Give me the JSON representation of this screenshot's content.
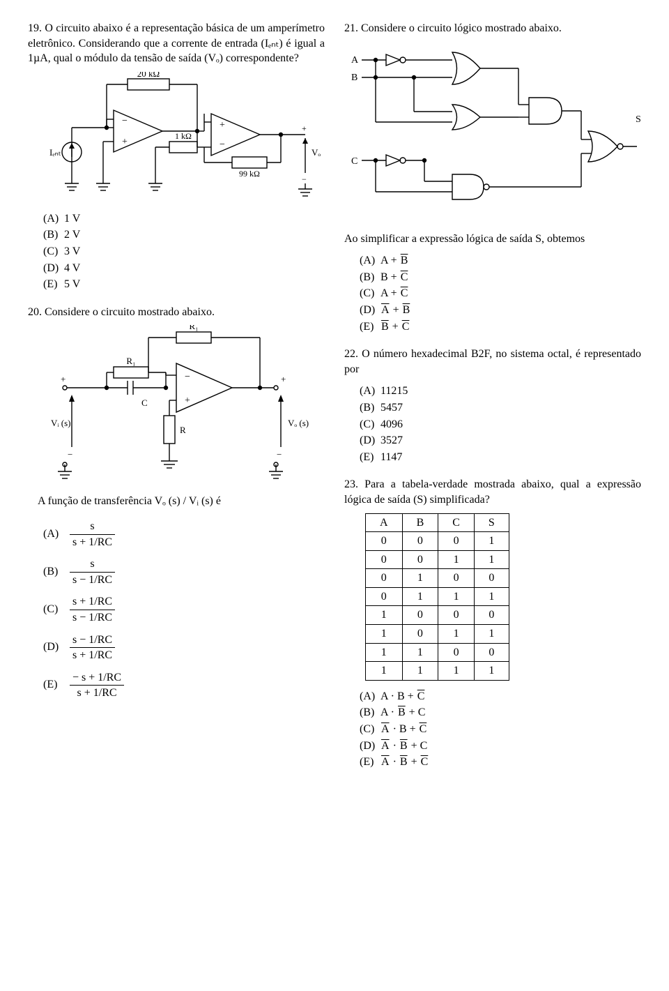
{
  "q19": {
    "number": "19.",
    "text": "O circuito abaixo é a representação básica de um amperímetro eletrônico. Considerando que a corrente de entrada (Iₑₙₜ) é igual a 1µA, qual o módulo da tensão de saída (Vₒ) correspondente?",
    "circuit": {
      "r1_label": "20 kΩ",
      "r2_label": "1 kΩ",
      "r3_label": "99 kΩ",
      "iin_label": "Iₑₙₜ",
      "vout_label": "Vₒ"
    },
    "options": [
      {
        "letter": "(A)",
        "val": "1 V"
      },
      {
        "letter": "(B)",
        "val": "2 V"
      },
      {
        "letter": "(C)",
        "val": "3 V"
      },
      {
        "letter": "(D)",
        "val": "4 V"
      },
      {
        "letter": "(E)",
        "val": "5 V"
      }
    ]
  },
  "q20": {
    "number": "20.",
    "text": "Considere o circuito mostrado abaixo.",
    "circuit": {
      "r1_label_top": "R₁",
      "r1_label_left": "R₁",
      "c_label": "C",
      "r_label": "R",
      "vi_label": "Vᵢ (s)",
      "vo_label": "Vₒ (s)"
    },
    "sub_text": "A função de transferência Vₒ (s) / Vᵢ (s) é",
    "options": [
      {
        "letter": "(A)",
        "num": "s",
        "den": "s + 1/RC",
        "neg": ""
      },
      {
        "letter": "(B)",
        "num": "s",
        "den": "s − 1/RC",
        "neg": ""
      },
      {
        "letter": "(C)",
        "num": "s + 1/RC",
        "den": "s − 1/RC",
        "neg": ""
      },
      {
        "letter": "(D)",
        "num": "s − 1/RC",
        "den": "s + 1/RC",
        "neg": ""
      },
      {
        "letter": "(E)",
        "num": "− s + 1/RC",
        "den": "s + 1/RC",
        "neg": ""
      }
    ]
  },
  "q21": {
    "number": "21.",
    "text": "Considere o circuito lógico mostrado abaixo.",
    "labels": {
      "A": "A",
      "B": "B",
      "C": "C",
      "S": "S"
    },
    "sub_text": "Ao simplificar a expressão lógica de saída S, obtemos",
    "options": [
      {
        "letter": "(A)",
        "pre": "A + ",
        "bar": "B",
        "post": ""
      },
      {
        "letter": "(B)",
        "pre": "B + ",
        "bar": "C",
        "post": ""
      },
      {
        "letter": "(C)",
        "pre": "A + ",
        "bar": "C",
        "post": ""
      },
      {
        "letter": "(D)",
        "pre": "",
        "bar": "A",
        "mid": " + ",
        "bar2": "B",
        "post": ""
      },
      {
        "letter": "(E)",
        "pre": "",
        "bar": "B",
        "mid": " + ",
        "bar2": "C",
        "post": ""
      }
    ]
  },
  "q22": {
    "number": "22.",
    "text": "O número hexadecimal B2F, no sistema octal, é representado por",
    "options": [
      {
        "letter": "(A)",
        "val": "11215"
      },
      {
        "letter": "(B)",
        "val": "5457"
      },
      {
        "letter": "(C)",
        "val": "4096"
      },
      {
        "letter": "(D)",
        "val": "3527"
      },
      {
        "letter": "(E)",
        "val": "1147"
      }
    ]
  },
  "q23": {
    "number": "23.",
    "text": "Para a tabela-verdade mostrada abaixo, qual a expressão lógica de saída (S) simplificada?",
    "table": {
      "headers": [
        "A",
        "B",
        "C",
        "S"
      ],
      "rows": [
        [
          "0",
          "0",
          "0",
          "1"
        ],
        [
          "0",
          "0",
          "1",
          "1"
        ],
        [
          "0",
          "1",
          "0",
          "0"
        ],
        [
          "0",
          "1",
          "1",
          "1"
        ],
        [
          "1",
          "0",
          "0",
          "0"
        ],
        [
          "1",
          "0",
          "1",
          "1"
        ],
        [
          "1",
          "1",
          "0",
          "0"
        ],
        [
          "1",
          "1",
          "1",
          "1"
        ]
      ]
    },
    "options": [
      {
        "letter": "(A)",
        "terms": [
          {
            "t": "A"
          },
          {
            "t": "·"
          },
          {
            "t": "B"
          },
          {
            "t": " + "
          },
          {
            "t": "C",
            "bar": true
          }
        ]
      },
      {
        "letter": "(B)",
        "terms": [
          {
            "t": "A"
          },
          {
            "t": "·"
          },
          {
            "t": "B",
            "bar": true
          },
          {
            "t": " + "
          },
          {
            "t": "C"
          }
        ]
      },
      {
        "letter": "(C)",
        "terms": [
          {
            "t": "A",
            "bar": true
          },
          {
            "t": "·"
          },
          {
            "t": "B"
          },
          {
            "t": " + "
          },
          {
            "t": "C",
            "bar": true
          }
        ]
      },
      {
        "letter": "(D)",
        "terms": [
          {
            "t": "A",
            "bar": true
          },
          {
            "t": "·"
          },
          {
            "t": "B",
            "bar": true
          },
          {
            "t": " + "
          },
          {
            "t": "C"
          }
        ]
      },
      {
        "letter": "(E)",
        "terms": [
          {
            "t": "A",
            "bar": true
          },
          {
            "t": "·"
          },
          {
            "t": "B",
            "bar": true
          },
          {
            "t": " + "
          },
          {
            "t": "C",
            "bar": true
          }
        ]
      }
    ]
  },
  "colors": {
    "stroke": "#000000",
    "bg": "#ffffff"
  }
}
